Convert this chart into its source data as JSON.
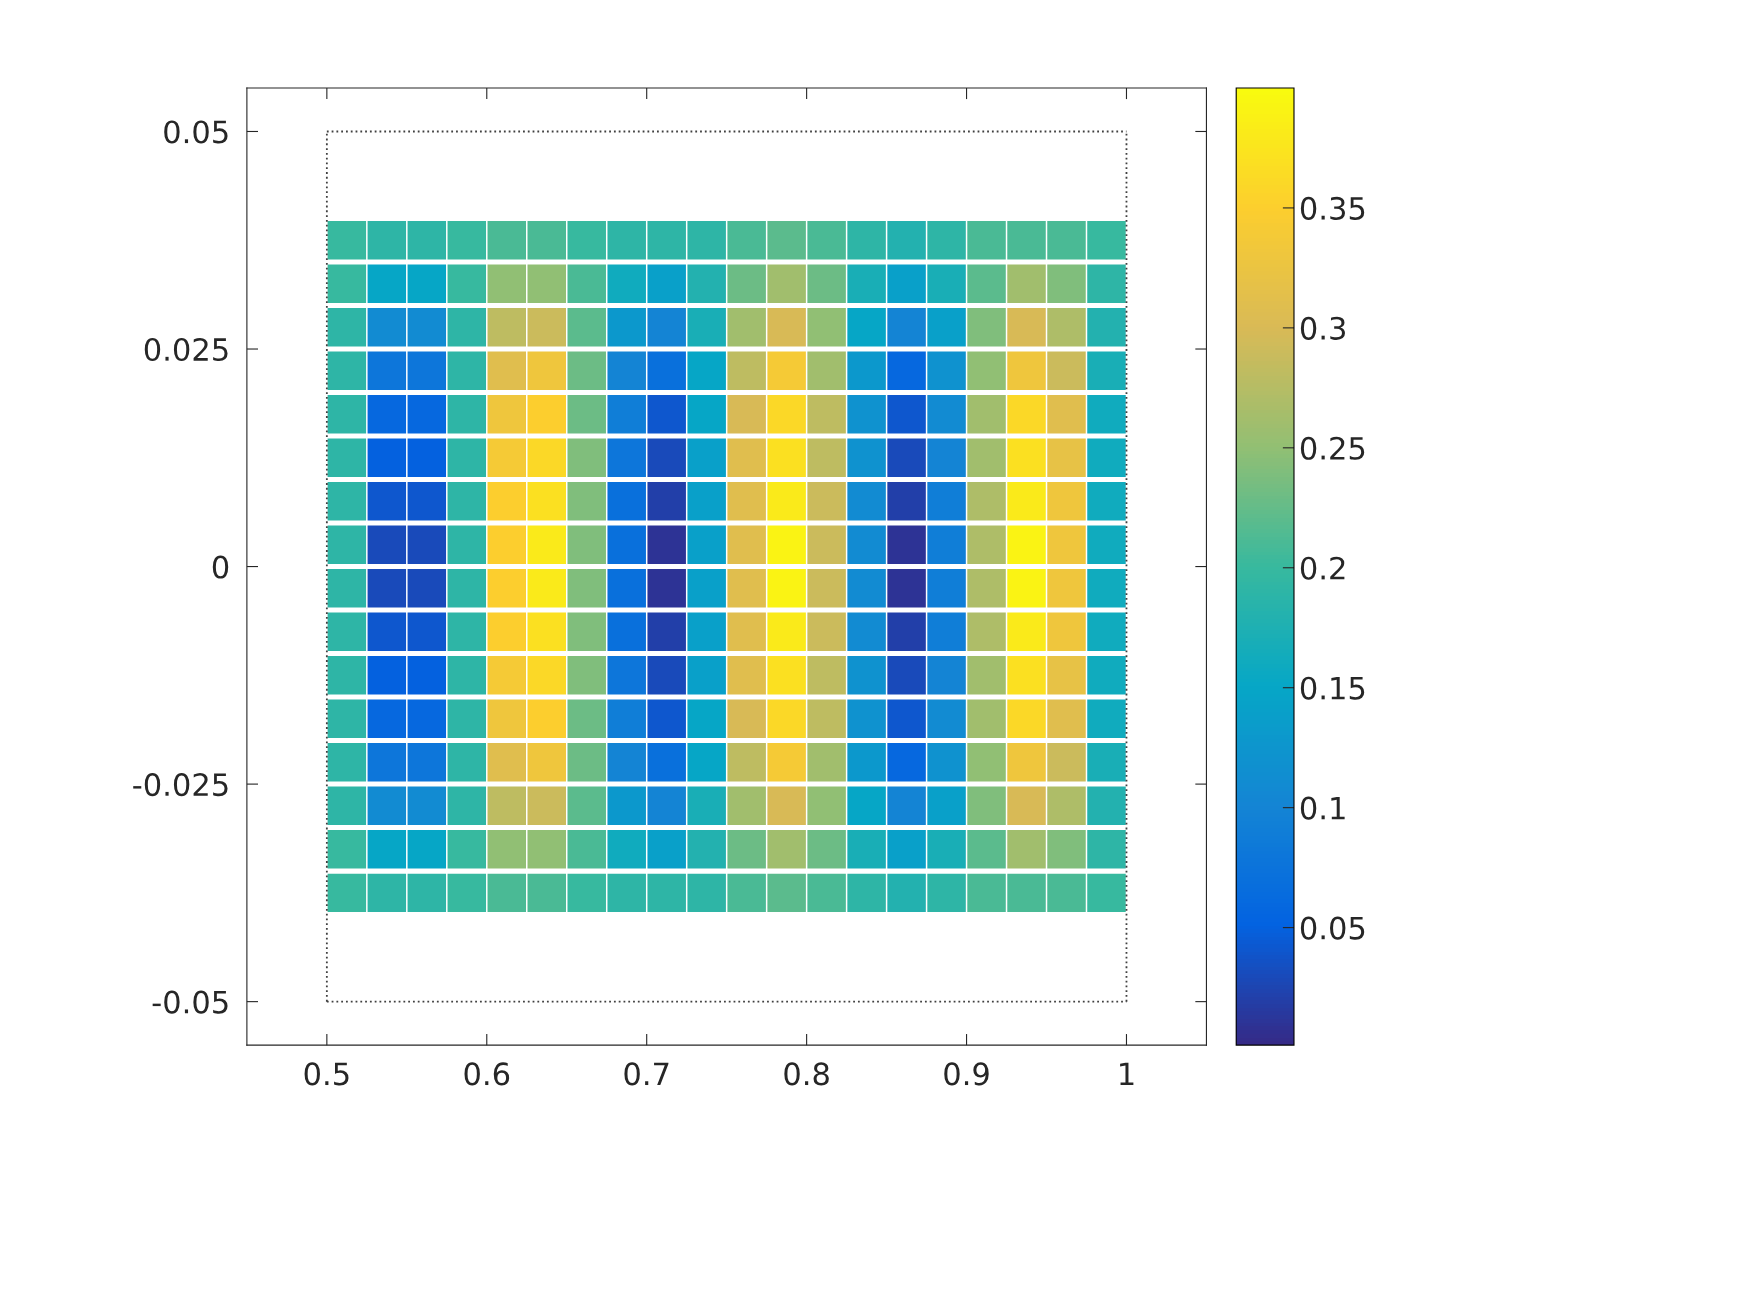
{
  "chart_data": {
    "type": "scatter",
    "marker": "square",
    "x": [
      0.5125,
      0.5375,
      0.5625,
      0.5875,
      0.6125,
      0.6375,
      0.6625,
      0.6875,
      0.7125,
      0.7375,
      0.7625,
      0.7875,
      0.8125,
      0.8375,
      0.8625,
      0.8875,
      0.9125,
      0.9375,
      0.9625,
      0.9875,
      0.5125,
      0.5375,
      0.5625,
      0.5875,
      0.6125,
      0.6375,
      0.6625,
      0.6875,
      0.7125,
      0.7375,
      0.7625,
      0.7875,
      0.8125,
      0.8375,
      0.8625,
      0.8875,
      0.9125,
      0.9375,
      0.9625,
      0.9875,
      0.5125,
      0.5375,
      0.5625,
      0.5875,
      0.6125,
      0.6375,
      0.6625,
      0.6875,
      0.7125,
      0.7375,
      0.7625,
      0.7875,
      0.8125,
      0.8375,
      0.8625,
      0.8875,
      0.9125,
      0.9375,
      0.9625,
      0.9875,
      0.5125,
      0.5375,
      0.5625,
      0.5875,
      0.6125,
      0.6375,
      0.6625,
      0.6875,
      0.7125,
      0.7375,
      0.7625,
      0.7875,
      0.8125,
      0.8375,
      0.8625,
      0.8875,
      0.9125,
      0.9375,
      0.9625,
      0.9875,
      0.5125,
      0.5375,
      0.5625,
      0.5875,
      0.6125,
      0.6375,
      0.6625,
      0.6875,
      0.7125,
      0.7375,
      0.7625,
      0.7875,
      0.8125,
      0.8375,
      0.8625,
      0.8875,
      0.9125,
      0.9375,
      0.9625,
      0.9875,
      0.5125,
      0.5375,
      0.5625,
      0.5875,
      0.6125,
      0.6375,
      0.6625,
      0.6875,
      0.7125,
      0.7375,
      0.7625,
      0.7875,
      0.8125,
      0.8375,
      0.8625,
      0.8875,
      0.9125,
      0.9375,
      0.9625,
      0.9875,
      0.5125,
      0.5375,
      0.5625,
      0.5875,
      0.6125,
      0.6375,
      0.6625,
      0.6875,
      0.7125,
      0.7375,
      0.7625,
      0.7875,
      0.8125,
      0.8375,
      0.8625,
      0.8875,
      0.9125,
      0.9375,
      0.9625,
      0.9875,
      0.5125,
      0.5375,
      0.5625,
      0.5875,
      0.6125,
      0.6375,
      0.6625,
      0.6875,
      0.7125,
      0.7375,
      0.7625,
      0.7875,
      0.8125,
      0.8375,
      0.8625,
      0.8875,
      0.9125,
      0.9375,
      0.9625,
      0.9875,
      0.5125,
      0.5375,
      0.5625,
      0.5875,
      0.6125,
      0.6375,
      0.6625,
      0.6875,
      0.7125,
      0.7375,
      0.7625,
      0.7875,
      0.8125,
      0.8375,
      0.8625,
      0.8875,
      0.9125,
      0.9375,
      0.9625,
      0.9875,
      0.5125,
      0.5375,
      0.5625,
      0.5875,
      0.6125,
      0.6375,
      0.6625,
      0.6875,
      0.7125,
      0.7375,
      0.7625,
      0.7875,
      0.8125,
      0.8375,
      0.8625,
      0.8875,
      0.9125,
      0.9375,
      0.9625,
      0.9875,
      0.5125,
      0.5375,
      0.5625,
      0.5875,
      0.6125,
      0.6375,
      0.6625,
      0.6875,
      0.7125,
      0.7375,
      0.7625,
      0.7875,
      0.8125,
      0.8375,
      0.8625,
      0.8875,
      0.9125,
      0.9375,
      0.9625,
      0.9875,
      0.5125,
      0.5375,
      0.5625,
      0.5875,
      0.6125,
      0.6375,
      0.6625,
      0.6875,
      0.7125,
      0.7375,
      0.7625,
      0.7875,
      0.8125,
      0.8375,
      0.8625,
      0.8875,
      0.9125,
      0.9375,
      0.9625,
      0.9875,
      0.5125,
      0.5375,
      0.5625,
      0.5875,
      0.6125,
      0.6375,
      0.6625,
      0.6875,
      0.7125,
      0.7375,
      0.7625,
      0.7875,
      0.8125,
      0.8375,
      0.8625,
      0.8875,
      0.9125,
      0.9375,
      0.9625,
      0.9875,
      0.5125,
      0.5375,
      0.5625,
      0.5875,
      0.6125,
      0.6375,
      0.6625,
      0.6875,
      0.7125,
      0.7375,
      0.7625,
      0.7875,
      0.8125,
      0.8375,
      0.8625,
      0.8875,
      0.9125,
      0.9375,
      0.9625,
      0.9875,
      0.5125,
      0.5375,
      0.5625,
      0.5875,
      0.6125,
      0.6375,
      0.6625,
      0.6875,
      0.7125,
      0.7375,
      0.7625,
      0.7875,
      0.8125,
      0.8375,
      0.8625,
      0.8875,
      0.9125,
      0.9375,
      0.9625,
      0.9875,
      0.5125,
      0.5375,
      0.5625,
      0.5875,
      0.6125,
      0.6375,
      0.6625,
      0.6875,
      0.7125,
      0.7375,
      0.7625,
      0.7875,
      0.8125,
      0.8375,
      0.8625,
      0.8875,
      0.9125,
      0.9375,
      0.9625,
      0.9875
    ],
    "values": [
      0.0375,
      0.0375,
      0.0375,
      0.0375,
      0.0375,
      0.0375,
      0.0375,
      0.0375,
      0.0375,
      0.0375,
      0.0375,
      0.0375,
      0.0375,
      0.0375,
      0.0375,
      0.0375,
      0.0375,
      0.0375,
      0.0375,
      0.0375,
      0.0325,
      0.0325,
      0.0325,
      0.0325,
      0.0325,
      0.0325,
      0.0325,
      0.0325,
      0.0325,
      0.0325,
      0.0325,
      0.0325,
      0.0325,
      0.0325,
      0.0325,
      0.0325,
      0.0325,
      0.0325,
      0.0325,
      0.0325,
      0.0275,
      0.0275,
      0.0275,
      0.0275,
      0.0275,
      0.0275,
      0.0275,
      0.0275,
      0.0275,
      0.0275,
      0.0275,
      0.0275,
      0.0275,
      0.0275,
      0.0275,
      0.0275,
      0.0275,
      0.0275,
      0.0275,
      0.0275,
      0.0225,
      0.0225,
      0.0225,
      0.0225,
      0.0225,
      0.0225,
      0.0225,
      0.0225,
      0.0225,
      0.0225,
      0.0225,
      0.0225,
      0.0225,
      0.0225,
      0.0225,
      0.0225,
      0.0225,
      0.0225,
      0.0225,
      0.0225,
      0.0175,
      0.0175,
      0.0175,
      0.0175,
      0.0175,
      0.0175,
      0.0175,
      0.0175,
      0.0175,
      0.0175,
      0.0175,
      0.0175,
      0.0175,
      0.0175,
      0.0175,
      0.0175,
      0.0175,
      0.0175,
      0.0175,
      0.0175,
      0.0125,
      0.0125,
      0.0125,
      0.0125,
      0.0125,
      0.0125,
      0.0125,
      0.0125,
      0.0125,
      0.0125,
      0.0125,
      0.0125,
      0.0125,
      0.0125,
      0.0125,
      0.0125,
      0.0125,
      0.0125,
      0.0125,
      0.0125,
      0.0075,
      0.0075,
      0.0075,
      0.0075,
      0.0075,
      0.0075,
      0.0075,
      0.0075,
      0.0075,
      0.0075,
      0.0075,
      0.0075,
      0.0075,
      0.0075,
      0.0075,
      0.0075,
      0.0075,
      0.0075,
      0.0075,
      0.0075,
      0.0025,
      0.0025,
      0.0025,
      0.0025,
      0.0025,
      0.0025,
      0.0025,
      0.0025,
      0.0025,
      0.0025,
      0.0025,
      0.0025,
      0.0025,
      0.0025,
      0.0025,
      0.0025,
      0.0025,
      0.0025,
      0.0025,
      0.0025,
      -0.0025,
      -0.0025,
      -0.0025,
      -0.0025,
      -0.0025,
      -0.0025,
      -0.0025,
      -0.0025,
      -0.0025,
      -0.0025,
      -0.0025,
      -0.0025,
      -0.0025,
      -0.0025,
      -0.0025,
      -0.0025,
      -0.0025,
      -0.0025,
      -0.0025,
      -0.0025,
      -0.0075,
      -0.0075,
      -0.0075,
      -0.0075,
      -0.0075,
      -0.0075,
      -0.0075,
      -0.0075,
      -0.0075,
      -0.0075,
      -0.0075,
      -0.0075,
      -0.0075,
      -0.0075,
      -0.0075,
      -0.0075,
      -0.0075,
      -0.0075,
      -0.0075,
      -0.0075,
      -0.0125,
      -0.0125,
      -0.0125,
      -0.0125,
      -0.0125,
      -0.0125,
      -0.0125,
      -0.0125,
      -0.0125,
      -0.0125,
      -0.0125,
      -0.0125,
      -0.0125,
      -0.0125,
      -0.0125,
      -0.0125,
      -0.0125,
      -0.0125,
      -0.0125,
      -0.0125,
      -0.0175,
      -0.0175,
      -0.0175,
      -0.0175,
      -0.0175,
      -0.0175,
      -0.0175,
      -0.0175,
      -0.0175,
      -0.0175,
      -0.0175,
      -0.0175,
      -0.0175,
      -0.0175,
      -0.0175,
      -0.0175,
      -0.0175,
      -0.0175,
      -0.0175,
      -0.0175,
      -0.0225,
      -0.0225,
      -0.0225,
      -0.0225,
      -0.0225,
      -0.0225,
      -0.0225,
      -0.0225,
      -0.0225,
      -0.0225,
      -0.0225,
      -0.0225,
      -0.0225,
      -0.0225,
      -0.0225,
      -0.0225,
      -0.0225,
      -0.0225,
      -0.0225,
      -0.0225,
      -0.0275,
      -0.0275,
      -0.0275,
      -0.0275,
      -0.0275,
      -0.0275,
      -0.0275,
      -0.0275,
      -0.0275,
      -0.0275,
      -0.0275,
      -0.0275,
      -0.0275,
      -0.0275,
      -0.0275,
      -0.0275,
      -0.0275,
      -0.0275,
      -0.0275,
      -0.0275,
      -0.0325,
      -0.0325,
      -0.0325,
      -0.0325,
      -0.0325,
      -0.0325,
      -0.0325,
      -0.0325,
      -0.0325,
      -0.0325,
      -0.0325,
      -0.0325,
      -0.0325,
      -0.0325,
      -0.0325,
      -0.0325,
      -0.0325,
      -0.0325,
      -0.0325,
      -0.0325,
      -0.0375,
      -0.0375,
      -0.0375,
      -0.0375,
      -0.0375,
      -0.0375,
      -0.0375,
      -0.0375,
      -0.0375,
      -0.0375,
      -0.0375,
      -0.0375,
      -0.0375,
      -0.0375,
      -0.0375,
      -0.0375,
      -0.0375,
      -0.0375,
      -0.0375,
      -0.0375
    ],
    "cvalues": [
      0.2,
      0.19,
      0.19,
      0.2,
      0.21,
      0.21,
      0.2,
      0.19,
      0.19,
      0.19,
      0.21,
      0.22,
      0.21,
      0.19,
      0.18,
      0.19,
      0.21,
      0.21,
      0.21,
      0.2,
      0.2,
      0.15,
      0.15,
      0.2,
      0.25,
      0.25,
      0.21,
      0.16,
      0.14,
      0.18,
      0.23,
      0.26,
      0.23,
      0.17,
      0.14,
      0.17,
      0.22,
      0.26,
      0.24,
      0.19,
      0.19,
      0.11,
      0.11,
      0.19,
      0.28,
      0.29,
      0.22,
      0.13,
      0.1,
      0.17,
      0.26,
      0.3,
      0.25,
      0.15,
      0.1,
      0.14,
      0.24,
      0.3,
      0.27,
      0.18,
      0.19,
      0.08,
      0.08,
      0.19,
      0.31,
      0.33,
      0.23,
      0.1,
      0.07,
      0.15,
      0.28,
      0.34,
      0.26,
      0.13,
      0.06,
      0.12,
      0.25,
      0.33,
      0.29,
      0.17,
      0.19,
      0.06,
      0.06,
      0.19,
      0.33,
      0.35,
      0.23,
      0.09,
      0.04,
      0.15,
      0.3,
      0.36,
      0.28,
      0.12,
      0.04,
      0.11,
      0.26,
      0.36,
      0.31,
      0.16,
      0.19,
      0.05,
      0.05,
      0.19,
      0.34,
      0.36,
      0.24,
      0.08,
      0.03,
      0.14,
      0.31,
      0.37,
      0.28,
      0.12,
      0.03,
      0.1,
      0.26,
      0.37,
      0.32,
      0.16,
      0.19,
      0.04,
      0.04,
      0.19,
      0.35,
      0.37,
      0.24,
      0.07,
      0.02,
      0.14,
      0.31,
      0.38,
      0.29,
      0.11,
      0.02,
      0.09,
      0.27,
      0.38,
      0.33,
      0.16,
      0.19,
      0.03,
      0.03,
      0.19,
      0.35,
      0.38,
      0.24,
      0.07,
      0.01,
      0.14,
      0.31,
      0.39,
      0.29,
      0.11,
      0.01,
      0.09,
      0.27,
      0.39,
      0.33,
      0.16,
      0.19,
      0.03,
      0.03,
      0.19,
      0.35,
      0.38,
      0.24,
      0.07,
      0.01,
      0.14,
      0.31,
      0.39,
      0.29,
      0.11,
      0.01,
      0.09,
      0.27,
      0.39,
      0.33,
      0.16,
      0.19,
      0.04,
      0.04,
      0.19,
      0.35,
      0.37,
      0.24,
      0.07,
      0.02,
      0.14,
      0.31,
      0.38,
      0.29,
      0.11,
      0.02,
      0.09,
      0.27,
      0.38,
      0.33,
      0.16,
      0.19,
      0.05,
      0.05,
      0.19,
      0.34,
      0.36,
      0.24,
      0.08,
      0.03,
      0.14,
      0.31,
      0.37,
      0.28,
      0.12,
      0.03,
      0.1,
      0.26,
      0.37,
      0.32,
      0.16,
      0.19,
      0.06,
      0.06,
      0.19,
      0.33,
      0.35,
      0.23,
      0.09,
      0.04,
      0.15,
      0.3,
      0.36,
      0.28,
      0.12,
      0.04,
      0.11,
      0.26,
      0.36,
      0.31,
      0.16,
      0.19,
      0.08,
      0.08,
      0.19,
      0.31,
      0.33,
      0.23,
      0.1,
      0.07,
      0.15,
      0.28,
      0.34,
      0.26,
      0.13,
      0.06,
      0.12,
      0.25,
      0.33,
      0.29,
      0.17,
      0.19,
      0.11,
      0.11,
      0.19,
      0.28,
      0.29,
      0.22,
      0.13,
      0.1,
      0.17,
      0.26,
      0.3,
      0.25,
      0.15,
      0.1,
      0.14,
      0.24,
      0.3,
      0.27,
      0.18,
      0.2,
      0.15,
      0.15,
      0.2,
      0.25,
      0.25,
      0.21,
      0.16,
      0.14,
      0.18,
      0.23,
      0.26,
      0.23,
      0.17,
      0.14,
      0.17,
      0.22,
      0.26,
      0.24,
      0.19,
      0.2,
      0.19,
      0.19,
      0.2,
      0.21,
      0.21,
      0.2,
      0.19,
      0.19,
      0.19,
      0.21,
      0.22,
      0.21,
      0.19,
      0.18,
      0.19,
      0.21,
      0.21,
      0.21,
      0.2
    ],
    "clim": [
      0.001,
      0.4
    ],
    "cticks": [
      0.05,
      0.1,
      0.15,
      0.2,
      0.25,
      0.3,
      0.35
    ],
    "xlim": [
      0.45,
      1.05
    ],
    "ylim": [
      -0.055,
      0.055
    ],
    "xticks": [
      0.5,
      0.6,
      0.7,
      0.8,
      0.9,
      1
    ],
    "yticks": [
      -0.05,
      -0.025,
      0,
      0.025,
      0.05
    ],
    "ref_lines": [
      {
        "axis": "x",
        "value": 0.5,
        "color": "#404040",
        "line_style": "dotted"
      },
      {
        "axis": "x",
        "value": 1,
        "color": "#404040",
        "line_style": "dotted"
      },
      {
        "axis": "y",
        "value": 0.05,
        "color": "#404040",
        "line_style": "dotted"
      },
      {
        "axis": "y",
        "value": -0.05,
        "color": "#404040",
        "line_style": "dotted"
      }
    ],
    "grid": false
  }
}
